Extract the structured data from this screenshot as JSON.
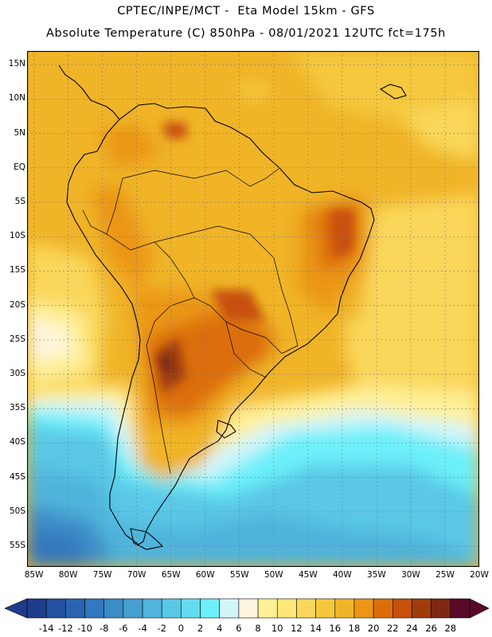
{
  "header": {
    "line1": "CPTEC/INPE/MCT -  Eta Model 15km - GFS",
    "line2": "Absolute Temperature (C) 850hPa - 08/01/2021 12UTC fct=175h"
  },
  "map": {
    "lat_range": [
      -58,
      17
    ],
    "lon_range": [
      -86,
      -20
    ],
    "lat_ticks": [
      "15N",
      "10N",
      "5N",
      "EQ",
      "5S",
      "10S",
      "15S",
      "20S",
      "25S",
      "30S",
      "35S",
      "40S",
      "45S",
      "50S",
      "55S"
    ],
    "lat_values": [
      15,
      10,
      5,
      0,
      -5,
      -10,
      -15,
      -20,
      -25,
      -30,
      -35,
      -40,
      -45,
      -50,
      -55
    ],
    "lon_ticks": [
      "85W",
      "80W",
      "75W",
      "70W",
      "65W",
      "60W",
      "55W",
      "50W",
      "45W",
      "40W",
      "35W",
      "30W",
      "25W",
      "20W"
    ],
    "lon_values": [
      -85,
      -80,
      -75,
      -70,
      -65,
      -60,
      -55,
      -50,
      -45,
      -40,
      -35,
      -30,
      -25,
      -20
    ],
    "gridlines": true
  },
  "colorbar": {
    "labels": [
      "-14",
      "-12",
      "-10",
      "-8",
      "-6",
      "-4",
      "-2",
      "0",
      "2",
      "4",
      "6",
      "8",
      "10",
      "12",
      "14",
      "16",
      "18",
      "20",
      "22",
      "24",
      "26",
      "28"
    ],
    "colors": [
      "#1e3c8c",
      "#2450a0",
      "#2a64b0",
      "#3278be",
      "#3c8cc8",
      "#46a0d2",
      "#50b4dc",
      "#5ac8e6",
      "#64dcf0",
      "#6cf0fa",
      "#d2f5fa",
      "#fff5dc",
      "#fff096",
      "#ffe678",
      "#fad75a",
      "#f5c83c",
      "#f0b428",
      "#eb9614",
      "#dc6e0a",
      "#c8500a",
      "#a03c0a",
      "#7d2814",
      "#5a0a28"
    ]
  }
}
